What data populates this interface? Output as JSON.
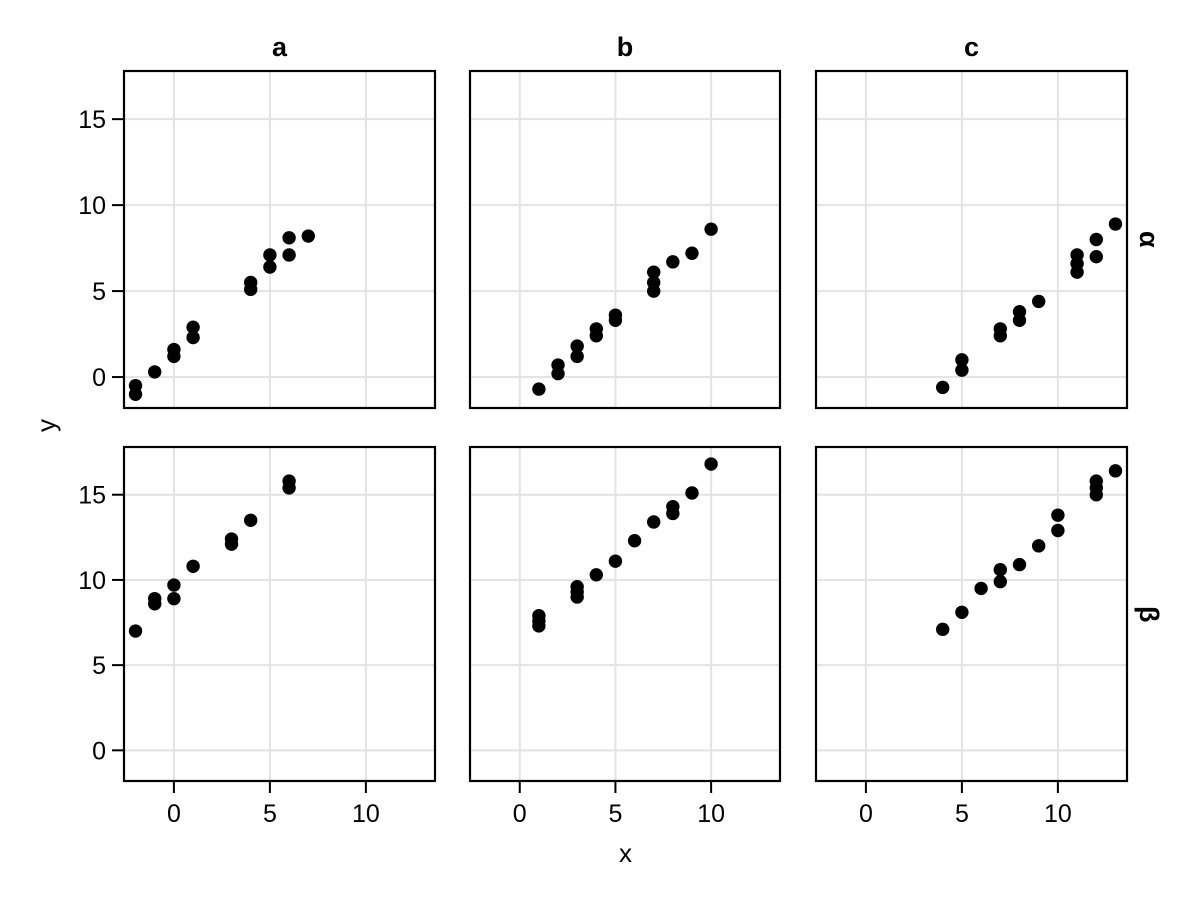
{
  "chart_data": {
    "type": "scatter",
    "title": "",
    "xlabel": "x",
    "ylabel": "y",
    "layout": "facet grid, 2 rows x 3 columns, shared axes, white background, black panel borders, light gray major gridlines, no legend",
    "col_facets": [
      "a",
      "b",
      "c"
    ],
    "row_facets": [
      "α",
      "β"
    ],
    "x_ticks": [
      0,
      5,
      10
    ],
    "y_ticks": [
      0,
      5,
      10,
      15
    ],
    "x_domain": [
      -2.6,
      13.6
    ],
    "y_domain": [
      -1.8,
      17.8
    ],
    "colors": {
      "point": "#000000",
      "grid": "#e3e3e3",
      "border": "#000000",
      "text": "#000000",
      "background": "#ffffff"
    },
    "panels": [
      {
        "col": "a",
        "row": "α",
        "points": [
          [
            -2,
            -0.5
          ],
          [
            -2,
            -1.0
          ],
          [
            -1,
            0.3
          ],
          [
            0,
            1.2
          ],
          [
            0,
            1.6
          ],
          [
            1,
            2.3
          ],
          [
            1,
            2.9
          ],
          [
            4,
            5.1
          ],
          [
            4,
            5.5
          ],
          [
            5,
            6.4
          ],
          [
            5,
            7.1
          ],
          [
            6,
            7.1
          ],
          [
            6,
            8.1
          ],
          [
            7,
            8.2
          ]
        ]
      },
      {
        "col": "b",
        "row": "α",
        "points": [
          [
            1,
            -0.7
          ],
          [
            2,
            0.2
          ],
          [
            2,
            0.7
          ],
          [
            3,
            1.2
          ],
          [
            3,
            1.8
          ],
          [
            4,
            2.4
          ],
          [
            4,
            2.8
          ],
          [
            5,
            3.3
          ],
          [
            5,
            3.6
          ],
          [
            7,
            5.0
          ],
          [
            7,
            5.5
          ],
          [
            7,
            6.1
          ],
          [
            8,
            6.7
          ],
          [
            9,
            7.2
          ],
          [
            10,
            8.6
          ]
        ]
      },
      {
        "col": "c",
        "row": "α",
        "points": [
          [
            4,
            -0.6
          ],
          [
            5,
            0.4
          ],
          [
            5,
            1.0
          ],
          [
            7,
            2.4
          ],
          [
            7,
            2.8
          ],
          [
            8,
            3.3
          ],
          [
            8,
            3.8
          ],
          [
            9,
            4.4
          ],
          [
            11,
            6.1
          ],
          [
            11,
            6.6
          ],
          [
            11,
            7.1
          ],
          [
            12,
            7.0
          ],
          [
            12,
            8.0
          ],
          [
            13,
            8.9
          ]
        ]
      },
      {
        "col": "a",
        "row": "β",
        "points": [
          [
            -2,
            7.0
          ],
          [
            -1,
            8.6
          ],
          [
            -1,
            8.9
          ],
          [
            0,
            8.9
          ],
          [
            0,
            9.7
          ],
          [
            1,
            10.8
          ],
          [
            3,
            12.1
          ],
          [
            3,
            12.4
          ],
          [
            4,
            13.5
          ],
          [
            6,
            15.4
          ],
          [
            6,
            15.8
          ]
        ]
      },
      {
        "col": "b",
        "row": "β",
        "points": [
          [
            1,
            7.3
          ],
          [
            1,
            7.6
          ],
          [
            1,
            7.9
          ],
          [
            3,
            9.0
          ],
          [
            3,
            9.3
          ],
          [
            3,
            9.6
          ],
          [
            4,
            10.3
          ],
          [
            5,
            11.1
          ],
          [
            6,
            12.3
          ],
          [
            7,
            13.4
          ],
          [
            8,
            13.9
          ],
          [
            8,
            14.3
          ],
          [
            9,
            15.1
          ],
          [
            10,
            16.8
          ]
        ]
      },
      {
        "col": "c",
        "row": "β",
        "points": [
          [
            4,
            7.1
          ],
          [
            5,
            8.1
          ],
          [
            6,
            9.5
          ],
          [
            7,
            9.9
          ],
          [
            7,
            10.6
          ],
          [
            8,
            10.9
          ],
          [
            9,
            12.0
          ],
          [
            10,
            12.9
          ],
          [
            10,
            13.8
          ],
          [
            12,
            15.0
          ],
          [
            12,
            15.4
          ],
          [
            12,
            15.8
          ],
          [
            13,
            16.4
          ]
        ]
      }
    ]
  }
}
